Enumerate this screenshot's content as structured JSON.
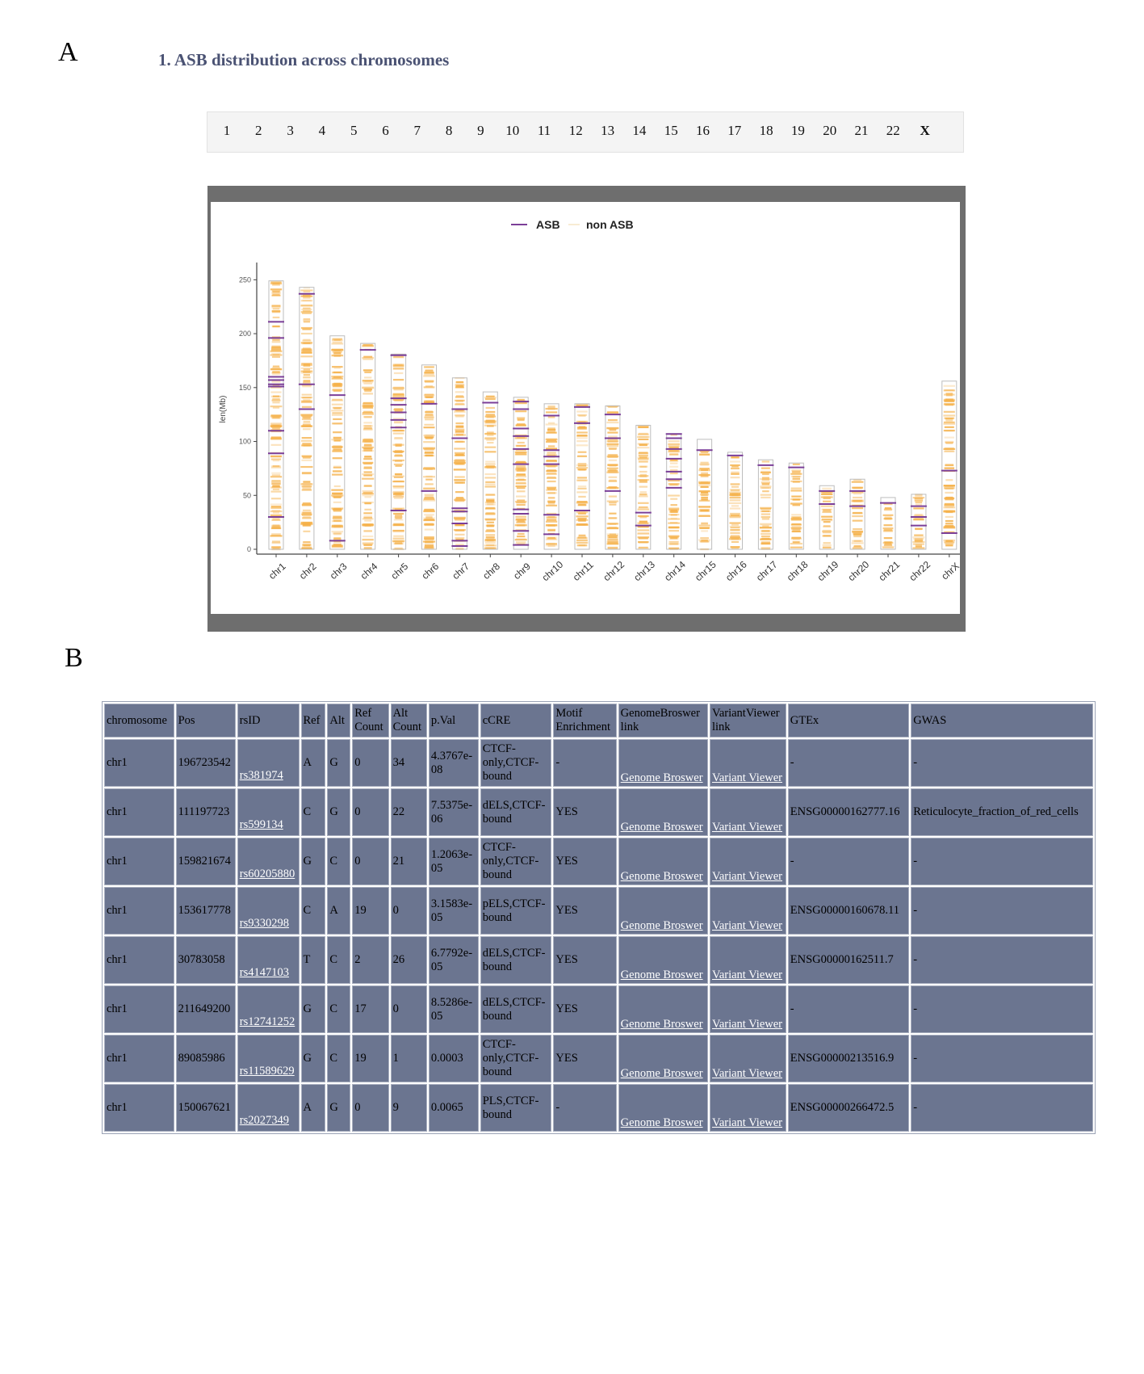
{
  "panel_labels": {
    "a": "A",
    "b": "B"
  },
  "section_title": "1. ASB distribution across chromosomes",
  "chrom_nav": [
    "1",
    "2",
    "3",
    "4",
    "5",
    "6",
    "7",
    "8",
    "9",
    "10",
    "11",
    "12",
    "13",
    "14",
    "15",
    "16",
    "17",
    "18",
    "19",
    "20",
    "21",
    "22",
    "X"
  ],
  "chart_data": {
    "type": "ideogram",
    "ylabel": "len(Mb)",
    "ylim": [
      0,
      260
    ],
    "yticks": [
      0,
      50,
      100,
      150,
      200,
      250
    ],
    "legend": {
      "position": "top-center",
      "entries": [
        "ASB",
        "non ASB"
      ]
    },
    "colors": {
      "asb": "#7b3f98",
      "non_asb": "#f5b14a",
      "outline": "#bdbdbd"
    },
    "chromosomes": [
      {
        "name": "chr1",
        "length": 249,
        "asb": [
          211,
          196,
          160,
          157,
          153,
          151,
          110,
          89,
          30
        ]
      },
      {
        "name": "chr2",
        "length": 243,
        "asb": [
          237,
          153,
          130
        ]
      },
      {
        "name": "chr3",
        "length": 198,
        "asb": [
          143,
          8
        ]
      },
      {
        "name": "chr4",
        "length": 191,
        "asb": [
          185
        ]
      },
      {
        "name": "chr5",
        "length": 181,
        "asb": [
          180,
          140,
          134,
          127,
          120,
          113,
          36
        ]
      },
      {
        "name": "chr6",
        "length": 171,
        "asb": [
          135,
          54
        ]
      },
      {
        "name": "chr7",
        "length": 159,
        "asb": [
          130,
          103,
          38,
          35,
          24,
          8,
          3
        ]
      },
      {
        "name": "chr8",
        "length": 146,
        "asb": [
          136
        ]
      },
      {
        "name": "chr9",
        "length": 141,
        "asb": [
          137,
          130,
          112,
          105,
          93,
          79,
          37,
          33,
          17,
          4
        ]
      },
      {
        "name": "chr10",
        "length": 135,
        "asb": [
          124,
          92,
          86,
          79,
          32,
          14
        ]
      },
      {
        "name": "chr11",
        "length": 135,
        "asb": [
          132,
          117,
          36
        ]
      },
      {
        "name": "chr12",
        "length": 133,
        "asb": [
          125,
          103,
          54
        ]
      },
      {
        "name": "chr13",
        "length": 115,
        "asb": [
          34,
          22
        ]
      },
      {
        "name": "chr14",
        "length": 107,
        "asb": [
          107,
          103,
          93,
          84,
          72,
          65,
          57
        ]
      },
      {
        "name": "chr15",
        "length": 102,
        "asb": [
          92
        ]
      },
      {
        "name": "chr16",
        "length": 90,
        "asb": [
          87
        ]
      },
      {
        "name": "chr17",
        "length": 83,
        "asb": [
          78
        ]
      },
      {
        "name": "chr18",
        "length": 80,
        "asb": [
          76
        ]
      },
      {
        "name": "chr19",
        "length": 59,
        "asb": [
          54,
          42
        ]
      },
      {
        "name": "chr20",
        "length": 65,
        "asb": [
          54,
          40
        ]
      },
      {
        "name": "chr21",
        "length": 48,
        "asb": [
          43
        ]
      },
      {
        "name": "chr22",
        "length": 51,
        "asb": [
          40,
          30,
          22
        ]
      },
      {
        "name": "chrX",
        "length": 156,
        "asb": [
          73,
          15
        ]
      }
    ]
  },
  "table": {
    "headers": [
      "chromosome",
      "Pos",
      "rsID",
      "Ref",
      "Alt",
      "Ref Count",
      "Alt Count",
      "p.Val",
      "cCRE",
      "Motif Enrichment",
      "GenomeBroswer link",
      "VariantViewer link",
      "GTEx",
      "GWAS"
    ],
    "rows": [
      [
        "chr1",
        "196723542",
        "rs381974",
        "A",
        "G",
        "0",
        "34",
        "4.3767e-08",
        "CTCF-only,CTCF-bound",
        "-",
        "Genome Broswer",
        "Variant Viewer",
        "-",
        "-"
      ],
      [
        "chr1",
        "111197723",
        "rs599134",
        "C",
        "G",
        "0",
        "22",
        "7.5375e-06",
        "dELS,CTCF-bound",
        "YES",
        "Genome Broswer",
        "Variant Viewer",
        "ENSG00000162777.16",
        "Reticulocyte_fraction_of_red_cells"
      ],
      [
        "chr1",
        "159821674",
        "rs60205880",
        "G",
        "C",
        "0",
        "21",
        "1.2063e-05",
        "CTCF-only,CTCF-bound",
        "YES",
        "Genome Broswer",
        "Variant Viewer",
        "-",
        "-"
      ],
      [
        "chr1",
        "153617778",
        "rs9330298",
        "C",
        "A",
        "19",
        "0",
        "3.1583e-05",
        "pELS,CTCF-bound",
        "YES",
        "Genome Broswer",
        "Variant Viewer",
        "ENSG00000160678.11",
        "-"
      ],
      [
        "chr1",
        "30783058",
        "rs4147103",
        "T",
        "C",
        "2",
        "26",
        "6.7792e-05",
        "dELS,CTCF-bound",
        "YES",
        "Genome Broswer",
        "Variant Viewer",
        "ENSG00000162511.7",
        "-"
      ],
      [
        "chr1",
        "211649200",
        "rs12741252",
        "G",
        "C",
        "17",
        "0",
        "8.5286e-05",
        "dELS,CTCF-bound",
        "YES",
        "Genome Broswer",
        "Variant Viewer",
        "-",
        "-"
      ],
      [
        "chr1",
        "89085986",
        "rs11589629",
        "G",
        "C",
        "19",
        "1",
        "0.0003",
        "CTCF-only,CTCF-bound",
        "YES",
        "Genome Broswer",
        "Variant Viewer",
        "ENSG00000213516.9",
        "-"
      ],
      [
        "chr1",
        "150067621",
        "rs2027349",
        "A",
        "G",
        "0",
        "9",
        "0.0065",
        "PLS,CTCF-bound",
        "-",
        "Genome Broswer",
        "Variant Viewer",
        "ENSG00000266472.5",
        "-"
      ]
    ]
  }
}
